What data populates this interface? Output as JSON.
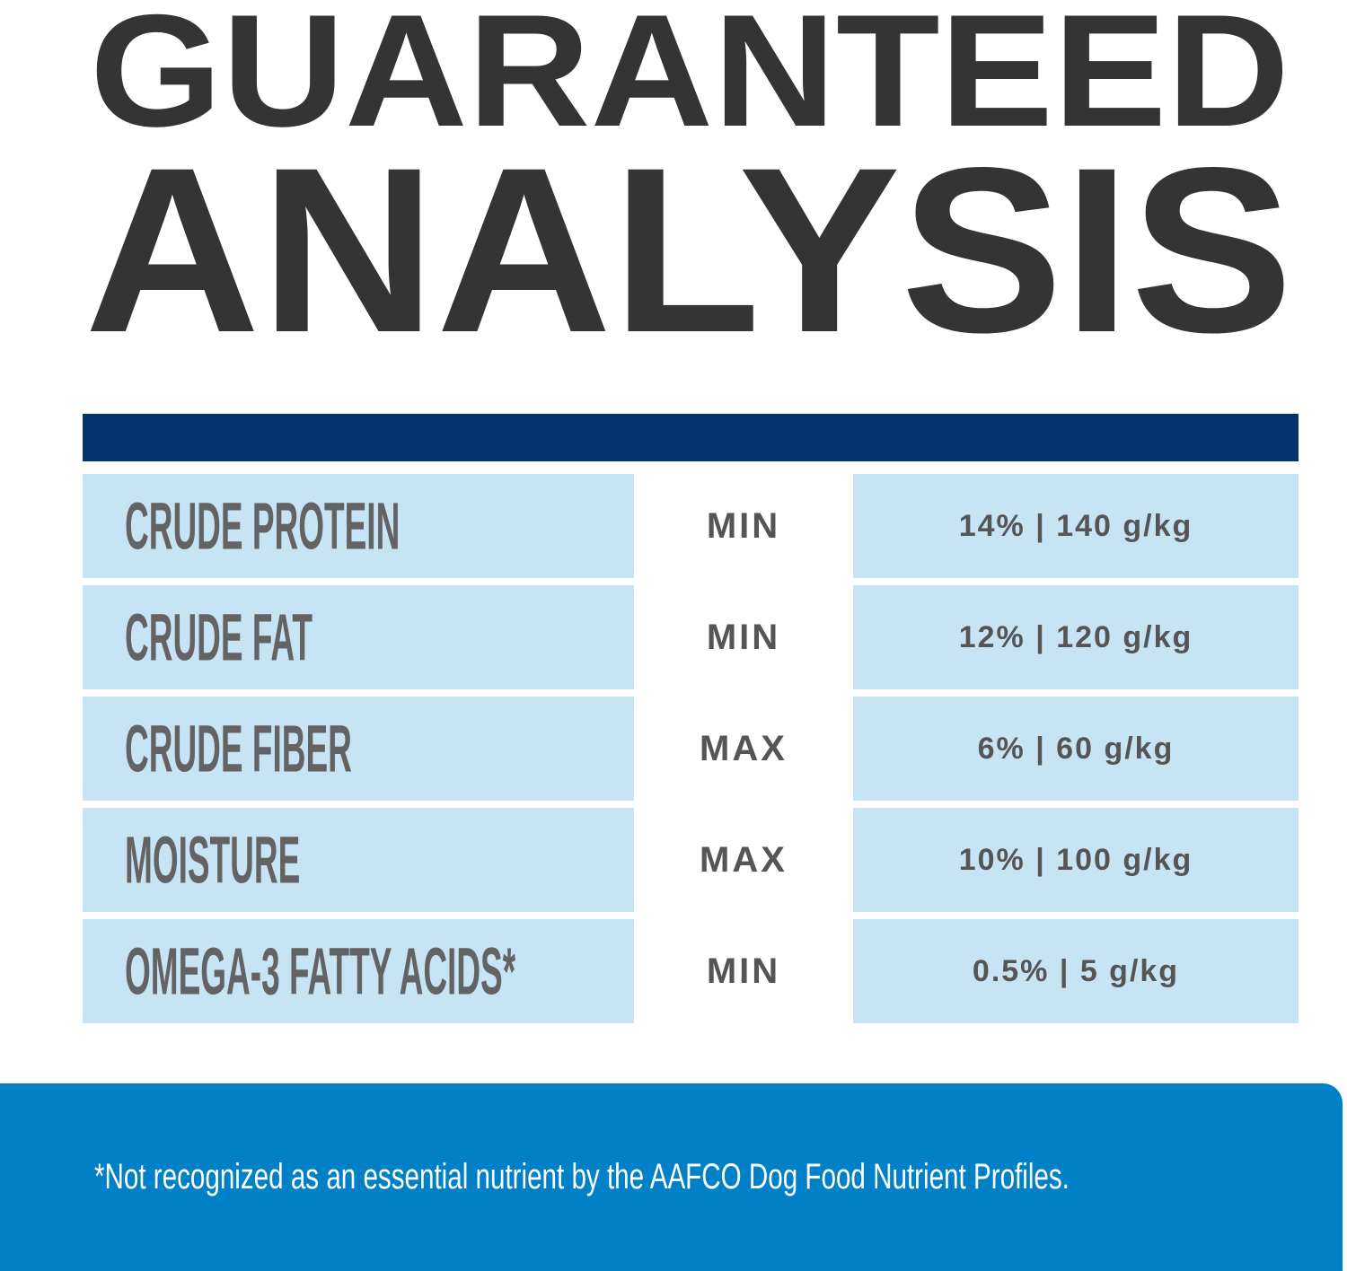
{
  "title": {
    "line1": "GUARANTEED",
    "line2": "ANALYSIS"
  },
  "colors": {
    "title": "#343434",
    "header_bar": "#03346e",
    "cell_bg": "#c7e4f5",
    "footer_bg": "#0080c6",
    "cell_text": "#555555"
  },
  "rows": [
    {
      "nutrient": "CRUDE PROTEIN",
      "type": "MIN",
      "value": "14% | 140 g/kg"
    },
    {
      "nutrient": "CRUDE FAT",
      "type": "MIN",
      "value": "12% | 120 g/kg"
    },
    {
      "nutrient": "CRUDE FIBER",
      "type": "MAX",
      "value": "6% | 60 g/kg"
    },
    {
      "nutrient": "MOISTURE",
      "type": "MAX",
      "value": "10% | 100 g/kg"
    },
    {
      "nutrient": "OMEGA-3 FATTY ACIDS*",
      "type": "MIN",
      "value": "0.5% | 5 g/kg"
    }
  ],
  "footnote": "*Not recognized as an essential nutrient by the AAFCO Dog Food Nutrient Profiles."
}
